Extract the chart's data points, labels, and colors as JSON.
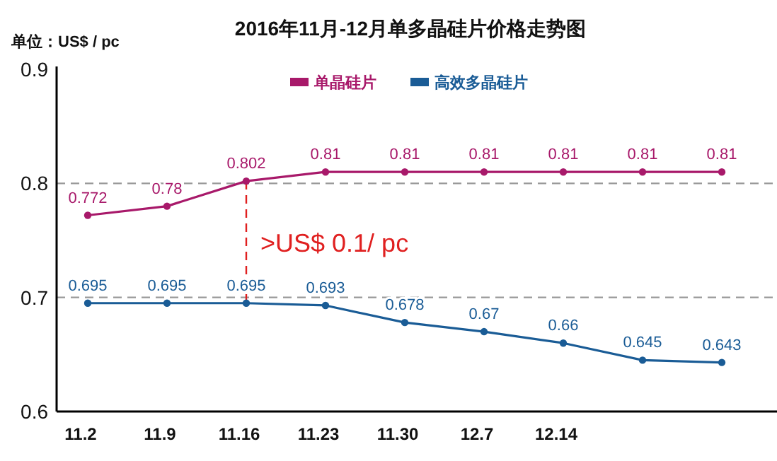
{
  "chart_data": {
    "type": "line",
    "title": "2016年11月-12月单多晶硅片价格走势图",
    "ylabel": "单位：US$ / pc",
    "categories": [
      "11.2",
      "11.9",
      "11.16",
      "11.23",
      "11.30",
      "12.7",
      "12.14",
      null,
      null
    ],
    "series": [
      {
        "name": "单晶硅片",
        "color": "#a8196a",
        "values": [
          0.772,
          0.78,
          0.802,
          0.81,
          0.81,
          0.81,
          0.81,
          0.81,
          0.81
        ]
      },
      {
        "name": "高效多晶硅片",
        "color": "#1a5c96",
        "values": [
          0.695,
          0.695,
          0.695,
          0.693,
          0.678,
          0.67,
          0.66,
          0.645,
          0.643
        ]
      }
    ],
    "ylim": [
      0.6,
      0.9
    ],
    "yticks": [
      0.6,
      0.7,
      0.8,
      0.9
    ],
    "grid": false,
    "legend": "top",
    "marker": "circle",
    "line_style": "solid",
    "data_labels": true,
    "ref_lines": [
      {
        "axis": "y",
        "value": 0.8,
        "label": null,
        "color": "#999999",
        "line_style": "dashed"
      },
      {
        "axis": "y",
        "value": 0.7,
        "label": null,
        "color": "#999999",
        "line_style": "dashed"
      },
      {
        "axis": "x",
        "value": "11.16",
        "label": ">US$ 0.1/ pc",
        "color": "#e02020",
        "line_style": "dashed"
      }
    ]
  }
}
